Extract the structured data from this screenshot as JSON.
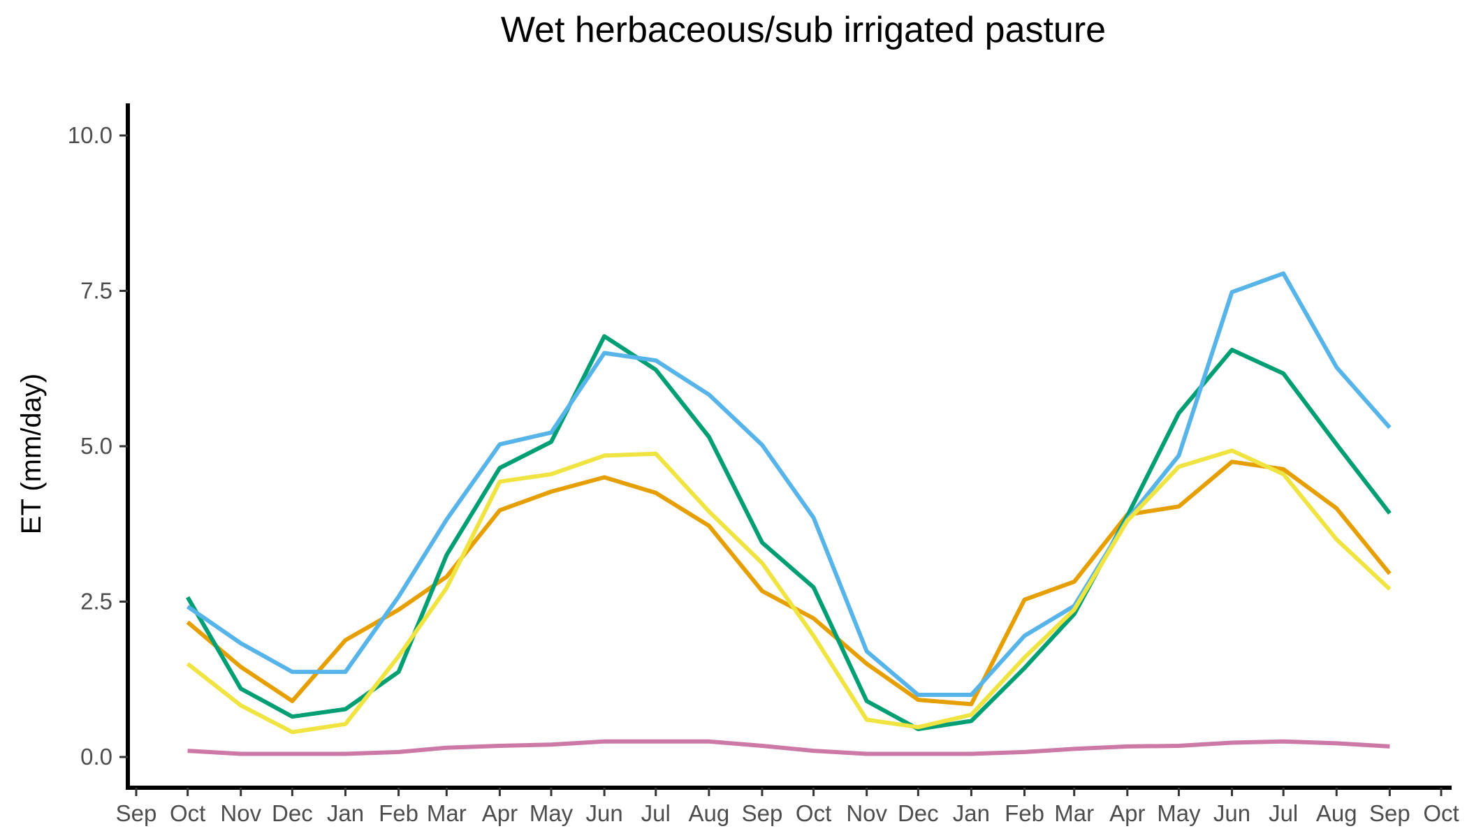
{
  "chart_data": {
    "type": "line",
    "title": "Wet herbaceous/sub irrigated pasture",
    "xlabel": "",
    "ylabel": "ET (mm/day)",
    "ylim": [
      0,
      10
    ],
    "xlim": [
      "2018-09-01",
      "2020-10-01"
    ],
    "yticks": [
      0.0,
      2.5,
      5.0,
      7.5,
      10.0
    ],
    "ytick_labels": [
      "0.0",
      "2.5",
      "5.0",
      "7.5",
      "10.0"
    ],
    "xticks": [
      "2018-09-01",
      "2018-10-01",
      "2018-11-01",
      "2018-12-01",
      "2019-01-01",
      "2019-02-01",
      "2019-03-01",
      "2019-04-01",
      "2019-05-01",
      "2019-06-01",
      "2019-07-01",
      "2019-08-01",
      "2019-09-01",
      "2019-10-01",
      "2019-11-01",
      "2019-12-01",
      "2020-01-01",
      "2020-02-01",
      "2020-03-01",
      "2020-04-01",
      "2020-05-01",
      "2020-06-01",
      "2020-07-01",
      "2020-08-01",
      "2020-09-01",
      "2020-10-01"
    ],
    "xtick_labels": [
      "Sep",
      "Oct",
      "Nov",
      "Dec",
      "Jan",
      "Feb",
      "Mar",
      "Apr",
      "May",
      "Jun",
      "Jul",
      "Aug",
      "Sep",
      "Oct",
      "Nov",
      "Dec",
      "Jan",
      "Feb",
      "Mar",
      "Apr",
      "May",
      "Jun",
      "Jul",
      "Aug",
      "Sep",
      "Oct"
    ],
    "x": [
      "2018-10-01",
      "2018-11-01",
      "2018-12-01",
      "2019-01-01",
      "2019-02-01",
      "2019-03-01",
      "2019-04-01",
      "2019-05-01",
      "2019-06-01",
      "2019-07-01",
      "2019-08-01",
      "2019-09-01",
      "2019-10-01",
      "2019-11-01",
      "2019-12-01",
      "2020-01-01",
      "2020-02-01",
      "2020-03-01",
      "2020-04-01",
      "2020-05-01",
      "2020-06-01",
      "2020-07-01",
      "2020-08-01",
      "2020-09-01"
    ],
    "grid": false,
    "legend": "none",
    "series": [
      {
        "color": "#E69F00",
        "values": [
          2.17,
          1.45,
          0.9,
          1.88,
          2.37,
          2.9,
          3.97,
          4.27,
          4.5,
          4.25,
          3.72,
          2.67,
          2.23,
          1.5,
          0.92,
          0.85,
          2.53,
          2.82,
          3.9,
          4.03,
          4.75,
          4.63,
          4.0,
          2.95
        ]
      },
      {
        "color": "#009E73",
        "values": [
          2.57,
          1.1,
          0.65,
          0.77,
          1.37,
          3.25,
          4.65,
          5.07,
          6.77,
          6.23,
          5.15,
          3.45,
          2.73,
          0.9,
          0.45,
          0.58,
          1.43,
          2.3,
          3.88,
          5.53,
          6.55,
          6.17,
          5.03,
          3.92
        ]
      },
      {
        "color": "#56B4E9",
        "values": [
          2.42,
          1.83,
          1.37,
          1.37,
          2.58,
          3.82,
          5.03,
          5.22,
          6.5,
          6.38,
          5.83,
          5.02,
          3.85,
          1.7,
          1.0,
          1.0,
          1.95,
          2.43,
          3.82,
          4.85,
          7.48,
          7.78,
          6.27,
          5.3
        ]
      },
      {
        "color": "#F0E442",
        "values": [
          1.5,
          0.83,
          0.4,
          0.53,
          1.62,
          2.72,
          4.43,
          4.55,
          4.85,
          4.88,
          3.95,
          3.12,
          1.95,
          0.6,
          0.48,
          0.68,
          1.6,
          2.37,
          3.8,
          4.67,
          4.93,
          4.55,
          3.5,
          2.7
        ]
      },
      {
        "color": "#CC79A7",
        "values": [
          0.1,
          0.05,
          0.05,
          0.05,
          0.08,
          0.15,
          0.18,
          0.2,
          0.25,
          0.25,
          0.25,
          0.18,
          0.1,
          0.05,
          0.05,
          0.05,
          0.08,
          0.13,
          0.17,
          0.18,
          0.23,
          0.25,
          0.22,
          0.17
        ]
      }
    ]
  }
}
